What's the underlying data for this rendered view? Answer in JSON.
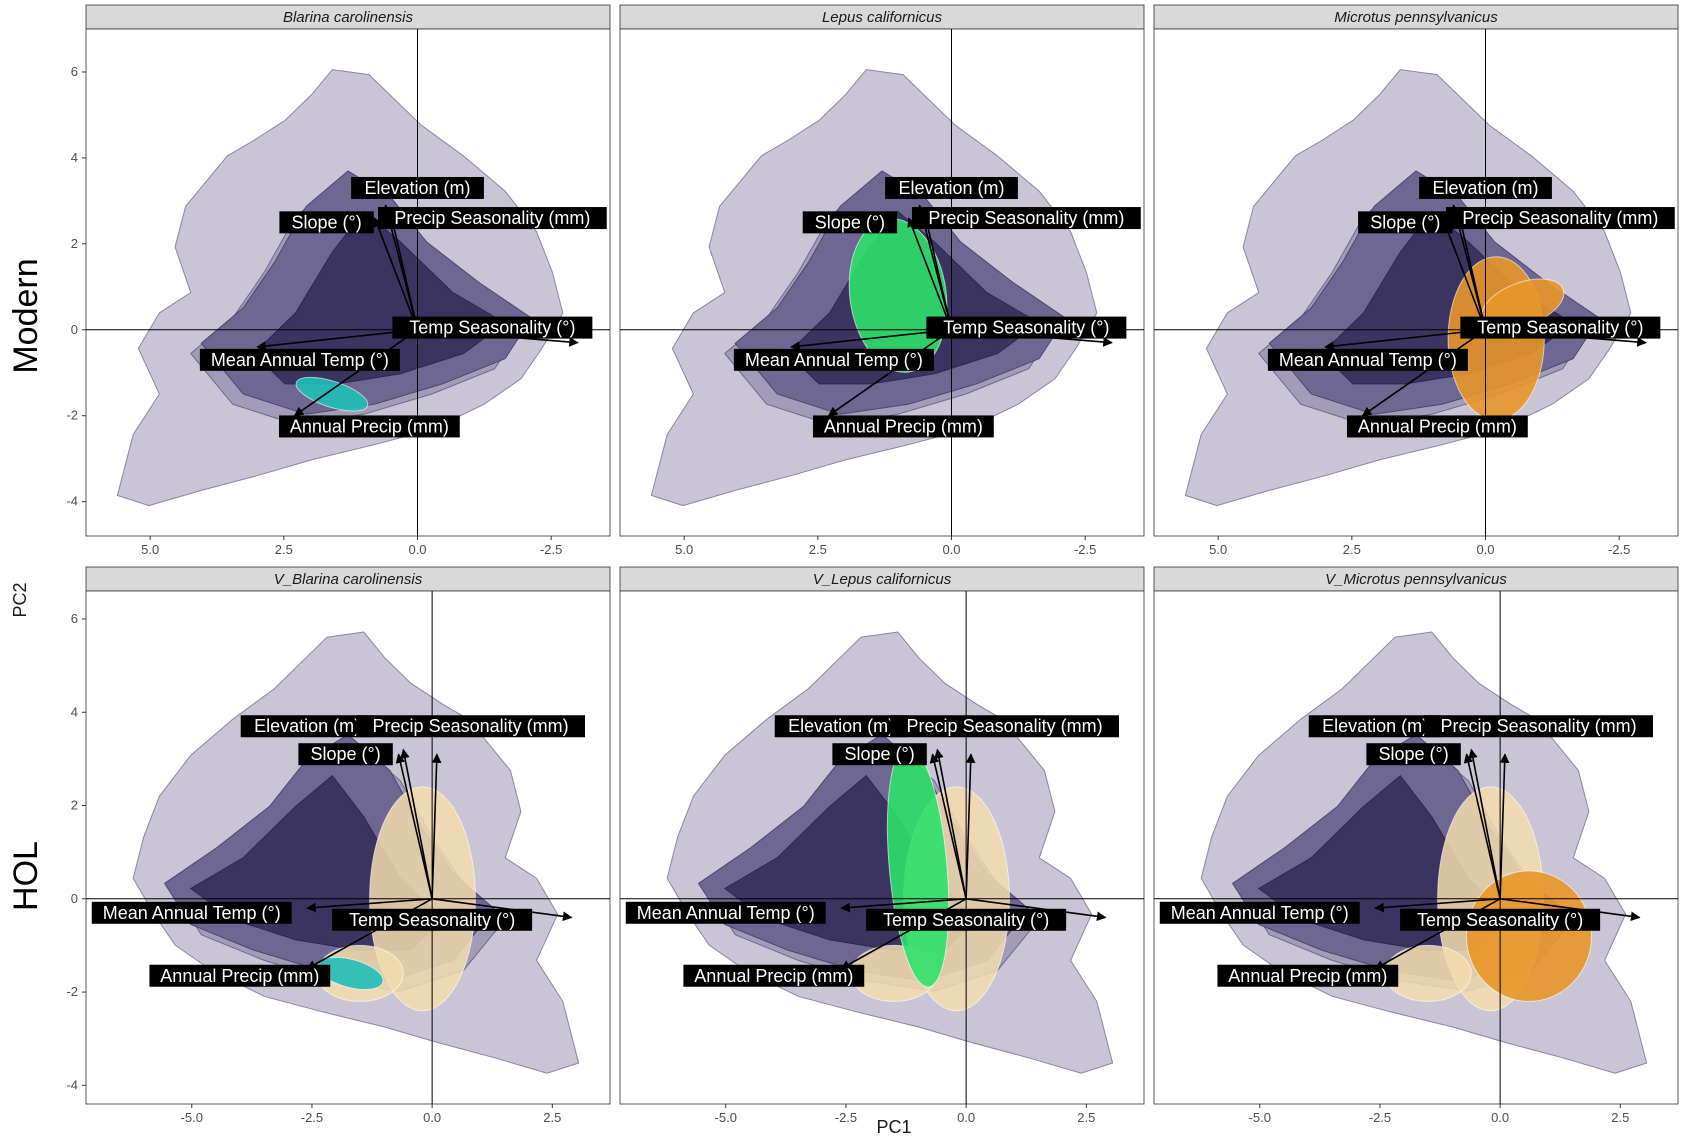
{
  "chart_data": {
    "type": "faceted-density-biplot",
    "xlabel": "PC1",
    "ylabel": "PC2",
    "row_labels": [
      "Modern",
      "HOL"
    ],
    "colors": {
      "background_density": [
        "#c9c5d4",
        "#a29cb8",
        "#6e6791",
        "#3b3461"
      ],
      "Blarina carolinensis": "#1fbfb8",
      "Lepus californicus": "#2ee06a",
      "Microtus pennsylvanicus": "#e8962a",
      "fossil_overlay": "#f3dcae"
    },
    "panels": [
      {
        "title": "Blarina carolinensis",
        "row": 0,
        "col": 0,
        "species": "Blarina carolinensis",
        "x_reversed": true,
        "xlim": [
          6.2,
          -3.6
        ],
        "ylim": [
          -4.8,
          7.0
        ],
        "x_ticks": [
          "5.0",
          "2.5",
          "0.0",
          "-2.5"
        ],
        "x_tick_values": [
          5.0,
          2.5,
          0.0,
          -2.5
        ],
        "y_ticks": [
          "6",
          "4",
          "2",
          "0",
          "-2",
          "-4"
        ],
        "y_tick_values": [
          6,
          4,
          2,
          0,
          -2,
          -4
        ],
        "loadings": [
          {
            "label": "Elevation (m)",
            "x": 0.6,
            "y": 2.9,
            "label_x": 0.0,
            "label_y": 3.3
          },
          {
            "label": "Slope (°)",
            "x": 0.8,
            "y": 2.6,
            "label_x": 1.7,
            "label_y": 2.5
          },
          {
            "label": "Precip Seasonality (mm)",
            "x": 0.5,
            "y": 2.7,
            "label_x": -1.4,
            "label_y": 2.6
          },
          {
            "label": "Temp Seasonality (°)",
            "x": -3.0,
            "y": -0.3,
            "label_x": -1.4,
            "label_y": 0.05
          },
          {
            "label": "Mean Annual Temp (°)",
            "x": 3.0,
            "y": -0.4,
            "label_x": 2.2,
            "label_y": -0.7
          },
          {
            "label": "Annual Precip (mm)",
            "x": 2.3,
            "y": -2.0,
            "label_x": 0.9,
            "label_y": -2.25
          }
        ],
        "overlays": [
          {
            "layer": "species",
            "center": [
              1.6,
              -1.5
            ],
            "rx": 0.7,
            "ry": 0.3,
            "rotate": 18
          }
        ]
      },
      {
        "title": "Lepus californicus",
        "row": 0,
        "col": 1,
        "species": "Lepus californicus",
        "x_reversed": true,
        "xlim": [
          6.2,
          -3.6
        ],
        "ylim": [
          -4.8,
          7.0
        ],
        "x_ticks": [
          "5.0",
          "2.5",
          "0.0",
          "-2.5"
        ],
        "x_tick_values": [
          5.0,
          2.5,
          0.0,
          -2.5
        ],
        "y_ticks": [],
        "y_tick_values": [],
        "loadings": [
          {
            "label": "Elevation (m)",
            "x": 0.6,
            "y": 2.9,
            "label_x": 0.0,
            "label_y": 3.3
          },
          {
            "label": "Slope (°)",
            "x": 0.8,
            "y": 2.6,
            "label_x": 1.9,
            "label_y": 2.5
          },
          {
            "label": "Precip Seasonality (mm)",
            "x": 0.5,
            "y": 2.7,
            "label_x": -1.4,
            "label_y": 2.6
          },
          {
            "label": "Temp Seasonality (°)",
            "x": -3.0,
            "y": -0.3,
            "label_x": -1.4,
            "label_y": 0.05
          },
          {
            "label": "Mean Annual Temp (°)",
            "x": 3.0,
            "y": -0.4,
            "label_x": 2.2,
            "label_y": -0.7
          },
          {
            "label": "Annual Precip (mm)",
            "x": 2.3,
            "y": -2.0,
            "label_x": 0.9,
            "label_y": -2.25
          }
        ],
        "overlays": [
          {
            "layer": "species",
            "center": [
              1.0,
              0.8
            ],
            "rx": 0.9,
            "ry": 1.8,
            "rotate": -8
          }
        ]
      },
      {
        "title": "Microtus pennsylvanicus",
        "row": 0,
        "col": 2,
        "species": "Microtus pennsylvanicus",
        "x_reversed": true,
        "xlim": [
          6.2,
          -3.6
        ],
        "ylim": [
          -4.8,
          7.0
        ],
        "x_ticks": [
          "5.0",
          "2.5",
          "0.0",
          "-2.5"
        ],
        "x_tick_values": [
          5.0,
          2.5,
          0.0,
          -2.5
        ],
        "y_ticks": [],
        "y_tick_values": [],
        "loadings": [
          {
            "label": "Elevation (m)",
            "x": 0.6,
            "y": 2.9,
            "label_x": 0.0,
            "label_y": 3.3
          },
          {
            "label": "Slope (°)",
            "x": 0.8,
            "y": 2.6,
            "label_x": 1.5,
            "label_y": 2.5
          },
          {
            "label": "Precip Seasonality (mm)",
            "x": 0.5,
            "y": 2.7,
            "label_x": -1.4,
            "label_y": 2.6
          },
          {
            "label": "Temp Seasonality (°)",
            "x": -3.0,
            "y": -0.3,
            "label_x": -1.4,
            "label_y": 0.05
          },
          {
            "label": "Mean Annual Temp (°)",
            "x": 3.0,
            "y": -0.4,
            "label_x": 2.2,
            "label_y": -0.7
          },
          {
            "label": "Annual Precip (mm)",
            "x": 2.3,
            "y": -2.0,
            "label_x": 0.9,
            "label_y": -2.25
          }
        ],
        "overlays": [
          {
            "layer": "species",
            "center": [
              -0.2,
              -0.2
            ],
            "rx": 0.9,
            "ry": 1.9,
            "rotate": 0
          },
          {
            "layer": "species",
            "center": [
              -0.7,
              0.6
            ],
            "rx": 0.8,
            "ry": 0.5,
            "rotate": -20
          }
        ]
      },
      {
        "title": "V_Blarina carolinensis",
        "row": 1,
        "col": 0,
        "species": "Blarina carolinensis",
        "x_reversed": false,
        "xlim": [
          -7.2,
          3.7
        ],
        "ylim": [
          -4.4,
          6.6
        ],
        "x_ticks": [
          "-5.0",
          "-2.5",
          "0.0",
          "2.5"
        ],
        "x_tick_values": [
          -5.0,
          -2.5,
          0.0,
          2.5
        ],
        "y_ticks": [
          "6",
          "4",
          "2",
          "0",
          "-2",
          "-4"
        ],
        "y_tick_values": [
          6,
          4,
          2,
          0,
          -2,
          -4
        ],
        "loadings": [
          {
            "label": "Elevation (m)",
            "x": -0.6,
            "y": 3.2,
            "label_x": -2.6,
            "label_y": 3.7
          },
          {
            "label": "Slope (°)",
            "x": -0.7,
            "y": 3.1,
            "label_x": -1.8,
            "label_y": 3.1
          },
          {
            "label": "Precip Seasonality (mm)",
            "x": 0.1,
            "y": 3.1,
            "label_x": 0.8,
            "label_y": 3.7
          },
          {
            "label": "Temp Seasonality (°)",
            "x": 2.9,
            "y": -0.4,
            "label_x": 0.0,
            "label_y": -0.45
          },
          {
            "label": "Mean Annual Temp (°)",
            "x": -2.6,
            "y": -0.2,
            "label_x": -5.0,
            "label_y": -0.3
          },
          {
            "label": "Annual Precip (mm)",
            "x": -2.6,
            "y": -1.5,
            "label_x": -4.0,
            "label_y": -1.65
          }
        ],
        "overlays": [
          {
            "layer": "fossil",
            "center": [
              -0.2,
              0.0
            ],
            "rx": 1.1,
            "ry": 2.4,
            "rotate": 0
          },
          {
            "layer": "fossil",
            "center": [
              -1.5,
              -1.6
            ],
            "rx": 0.9,
            "ry": 0.6,
            "rotate": 0
          },
          {
            "layer": "species",
            "center": [
              -1.7,
              -1.6
            ],
            "rx": 0.7,
            "ry": 0.3,
            "rotate": 15
          }
        ]
      },
      {
        "title": "V_Lepus californicus",
        "row": 1,
        "col": 1,
        "species": "Lepus californicus",
        "x_reversed": false,
        "xlim": [
          -7.2,
          3.7
        ],
        "ylim": [
          -4.4,
          6.6
        ],
        "x_ticks": [
          "-5.0",
          "-2.5",
          "0.0",
          "2.5"
        ],
        "x_tick_values": [
          -5.0,
          -2.5,
          0.0,
          2.5
        ],
        "y_ticks": [],
        "y_tick_values": [],
        "loadings": [
          {
            "label": "Elevation (m)",
            "x": -0.6,
            "y": 3.2,
            "label_x": -2.6,
            "label_y": 3.7
          },
          {
            "label": "Slope (°)",
            "x": -0.7,
            "y": 3.1,
            "label_x": -1.8,
            "label_y": 3.1
          },
          {
            "label": "Precip Seasonality (mm)",
            "x": 0.1,
            "y": 3.1,
            "label_x": 0.8,
            "label_y": 3.7
          },
          {
            "label": "Temp Seasonality (°)",
            "x": 2.9,
            "y": -0.4,
            "label_x": 0.0,
            "label_y": -0.45
          },
          {
            "label": "Mean Annual Temp (°)",
            "x": -2.6,
            "y": -0.2,
            "label_x": -5.0,
            "label_y": -0.3
          },
          {
            "label": "Annual Precip (mm)",
            "x": -2.6,
            "y": -1.5,
            "label_x": -4.0,
            "label_y": -1.65
          }
        ],
        "overlays": [
          {
            "layer": "fossil",
            "center": [
              -0.2,
              0.0
            ],
            "rx": 1.1,
            "ry": 2.4,
            "rotate": 0
          },
          {
            "layer": "fossil",
            "center": [
              -1.5,
              -1.6
            ],
            "rx": 0.9,
            "ry": 0.6,
            "rotate": 0
          },
          {
            "layer": "species",
            "center": [
              -1.0,
              0.7
            ],
            "rx": 0.6,
            "ry": 2.6,
            "rotate": -5
          }
        ]
      },
      {
        "title": "V_Microtus pennsylvanicus",
        "row": 1,
        "col": 2,
        "species": "Microtus pennsylvanicus",
        "x_reversed": false,
        "xlim": [
          -7.2,
          3.7
        ],
        "ylim": [
          -4.4,
          6.6
        ],
        "x_ticks": [
          "-5.0",
          "-2.5",
          "0.0",
          "2.5"
        ],
        "x_tick_values": [
          -5.0,
          -2.5,
          0.0,
          2.5
        ],
        "y_ticks": [],
        "y_tick_values": [],
        "loadings": [
          {
            "label": "Elevation (m)",
            "x": -0.6,
            "y": 3.2,
            "label_x": -2.6,
            "label_y": 3.7
          },
          {
            "label": "Slope (°)",
            "x": -0.7,
            "y": 3.1,
            "label_x": -1.8,
            "label_y": 3.1
          },
          {
            "label": "Precip Seasonality (mm)",
            "x": 0.1,
            "y": 3.1,
            "label_x": 0.8,
            "label_y": 3.7
          },
          {
            "label": "Temp Seasonality (°)",
            "x": 2.9,
            "y": -0.4,
            "label_x": 0.0,
            "label_y": -0.45
          },
          {
            "label": "Mean Annual Temp (°)",
            "x": -2.6,
            "y": -0.2,
            "label_x": -5.0,
            "label_y": -0.3
          },
          {
            "label": "Annual Precip (mm)",
            "x": -2.6,
            "y": -1.5,
            "label_x": -4.0,
            "label_y": -1.65
          }
        ],
        "overlays": [
          {
            "layer": "fossil",
            "center": [
              -0.2,
              0.0
            ],
            "rx": 1.1,
            "ry": 2.4,
            "rotate": 0
          },
          {
            "layer": "fossil",
            "center": [
              -1.5,
              -1.6
            ],
            "rx": 0.9,
            "ry": 0.6,
            "rotate": 0
          },
          {
            "layer": "species",
            "center": [
              0.6,
              -0.8
            ],
            "rx": 1.3,
            "ry": 1.4,
            "rotate": 0
          }
        ]
      }
    ]
  }
}
